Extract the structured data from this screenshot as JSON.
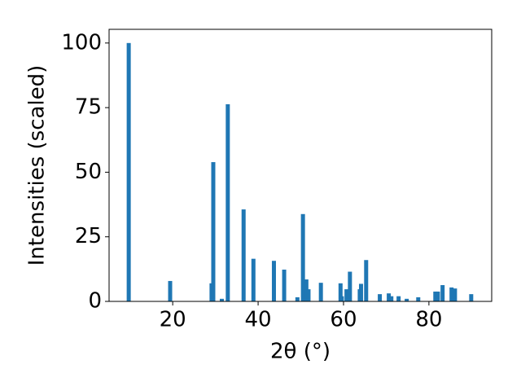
{
  "chart_data": {
    "type": "bar",
    "x_label": "2θ (°)",
    "y_label": "Intensities (scaled)",
    "color": "#1f77b4",
    "x": [
      9.7,
      19.4,
      29.1,
      29.5,
      31.5,
      32.9,
      36.6,
      38.9,
      43.7,
      46.1,
      49.2,
      50.5,
      51.3,
      51.8,
      54.7,
      59.3,
      59.6,
      60.7,
      61.5,
      63.8,
      64.1,
      65.3,
      68.5,
      70.6,
      71.2,
      72.9,
      74.8,
      77.5,
      81.5,
      82.1,
      83.2,
      85.3,
      86.1,
      89.9
    ],
    "values": [
      100,
      7.9,
      7,
      53.9,
      1,
      76.3,
      35.6,
      16.5,
      15.7,
      12.3,
      1.6,
      33.8,
      8.5,
      4.7,
      7.2,
      7,
      2,
      4.7,
      11.5,
      4.7,
      6.8,
      16,
      2.8,
      3.1,
      2,
      2,
      1,
      1.6,
      3.8,
      3.8,
      6.3,
      5.4,
      5,
      2.8
    ],
    "xlim": [
      5.1,
      94.7
    ],
    "ylim": [
      0,
      105.3
    ],
    "xticks": [
      20,
      40,
      60,
      80
    ],
    "yticks": [
      0,
      25,
      50,
      75,
      100
    ]
  }
}
